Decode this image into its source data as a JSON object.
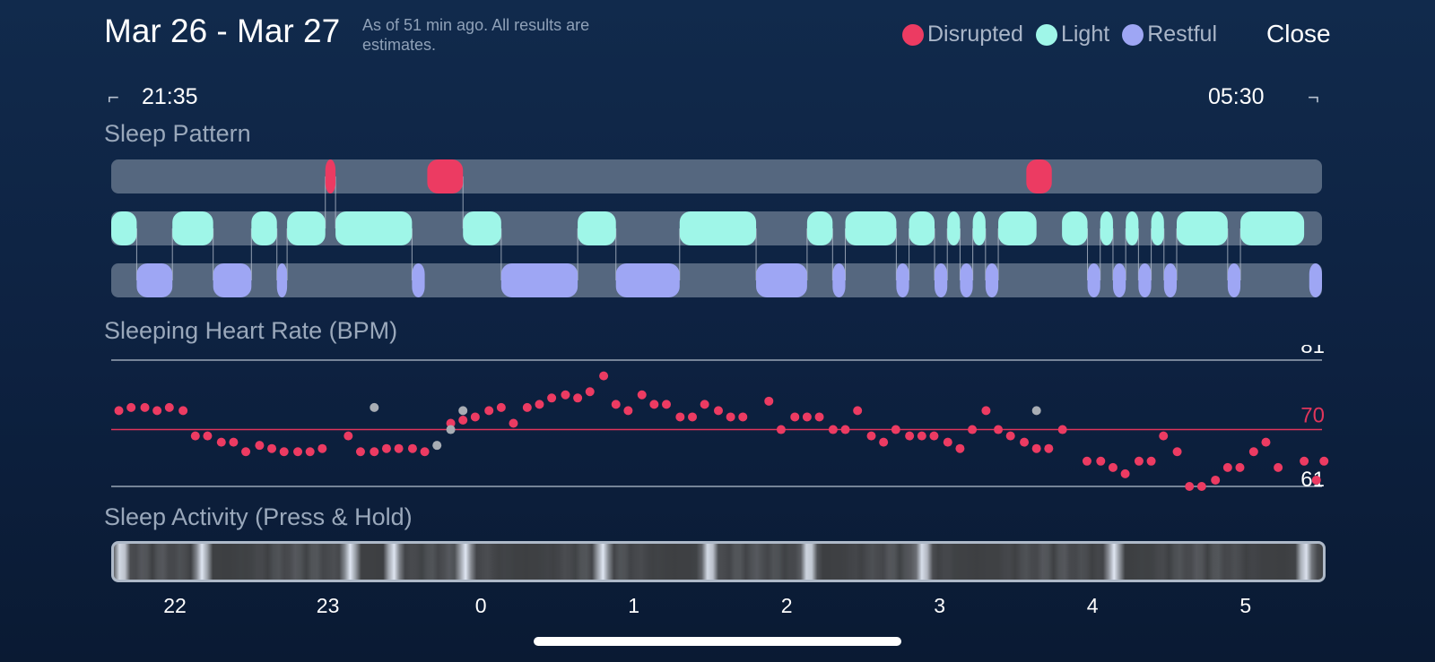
{
  "header": {
    "title": "Mar 26 - Mar 27",
    "subtitle": "As of 51 min ago. All results are estimates.",
    "close_label": "Close"
  },
  "legend": [
    {
      "label": "Disrupted",
      "color": "#ec3b62"
    },
    {
      "label": "Light",
      "color": "#9ff6e8"
    },
    {
      "label": "Restful",
      "color": "#9ea6f4"
    }
  ],
  "time_range": {
    "start": "21:35",
    "end": "05:30"
  },
  "sections": {
    "sleep_pattern": "Sleep Pattern",
    "heart_rate": "Sleeping Heart Rate (BPM)",
    "activity": "Sleep Activity (Press & Hold)"
  },
  "colors": {
    "disrupted": "#ec3b62",
    "light": "#9ff6e8",
    "restful": "#9ea6f4",
    "track": "#55677f",
    "gray_dot": "#a8adb4",
    "avg_line": "#e0355b"
  },
  "chart_data": [
    {
      "type": "timeline",
      "name": "Sleep Pattern",
      "time_start": "21:35",
      "time_end": "05:30",
      "rows": [
        "Disrupted",
        "Light",
        "Restful"
      ],
      "segments": {
        "Disrupted": [
          [
            "22:59",
            "23:03"
          ],
          [
            "23:39",
            "23:53"
          ],
          [
            "03:34",
            "03:44"
          ]
        ],
        "Light": [
          [
            "21:35",
            "21:45"
          ],
          [
            "21:59",
            "22:15"
          ],
          [
            "22:30",
            "22:40"
          ],
          [
            "22:44",
            "22:59"
          ],
          [
            "23:03",
            "23:33"
          ],
          [
            "23:53",
            "00:08"
          ],
          [
            "00:38",
            "00:53"
          ],
          [
            "01:18",
            "01:48"
          ],
          [
            "02:08",
            "02:18"
          ],
          [
            "02:23",
            "02:43"
          ],
          [
            "02:48",
            "02:58"
          ],
          [
            "03:03",
            "03:08"
          ],
          [
            "03:13",
            "03:18"
          ],
          [
            "03:23",
            "03:38"
          ],
          [
            "03:48",
            "03:58"
          ],
          [
            "04:03",
            "04:08"
          ],
          [
            "04:13",
            "04:18"
          ],
          [
            "04:23",
            "04:28"
          ],
          [
            "04:33",
            "04:53"
          ],
          [
            "04:58",
            "05:23"
          ]
        ],
        "Restful": [
          [
            "21:45",
            "21:59"
          ],
          [
            "22:15",
            "22:30"
          ],
          [
            "22:40",
            "22:44"
          ],
          [
            "23:33",
            "23:38"
          ],
          [
            "00:08",
            "00:38"
          ],
          [
            "00:53",
            "01:18"
          ],
          [
            "01:48",
            "02:08"
          ],
          [
            "02:18",
            "02:23"
          ],
          [
            "02:43",
            "02:48"
          ],
          [
            "02:58",
            "03:03"
          ],
          [
            "03:08",
            "03:13"
          ],
          [
            "03:18",
            "03:23"
          ],
          [
            "03:58",
            "04:03"
          ],
          [
            "04:08",
            "04:13"
          ],
          [
            "04:18",
            "04:23"
          ],
          [
            "04:28",
            "04:33"
          ],
          [
            "04:53",
            "04:58"
          ],
          [
            "05:25",
            "05:30"
          ]
        ]
      }
    },
    {
      "type": "scatter",
      "name": "Sleeping Heart Rate (BPM)",
      "ylim": [
        61,
        81
      ],
      "yticks": [
        "81",
        "70",
        "61"
      ],
      "average": 70,
      "x_unit": "hours after 21:35",
      "points": [
        [
          0.05,
          73
        ],
        [
          0.13,
          73.5
        ],
        [
          0.22,
          73.5
        ],
        [
          0.3,
          73
        ],
        [
          0.38,
          73.5
        ],
        [
          0.47,
          73
        ],
        [
          0.55,
          69
        ],
        [
          0.63,
          69
        ],
        [
          0.72,
          68
        ],
        [
          0.8,
          68
        ],
        [
          0.88,
          66.5
        ],
        [
          0.97,
          67.5
        ],
        [
          1.05,
          67
        ],
        [
          1.13,
          66.5
        ],
        [
          1.22,
          66.5
        ],
        [
          1.3,
          66.5
        ],
        [
          1.38,
          67
        ],
        [
          1.55,
          69
        ],
        [
          1.63,
          66.5
        ],
        [
          1.72,
          66.5
        ],
        [
          1.8,
          67
        ],
        [
          1.88,
          67
        ],
        [
          1.97,
          67
        ],
        [
          2.05,
          66.5
        ],
        [
          2.22,
          71
        ],
        [
          2.3,
          71.5
        ],
        [
          2.38,
          72
        ],
        [
          2.47,
          73
        ],
        [
          2.55,
          73.5
        ],
        [
          2.63,
          71
        ],
        [
          2.72,
          73.5
        ],
        [
          2.8,
          74
        ],
        [
          2.88,
          75
        ],
        [
          2.97,
          75.5
        ],
        [
          3.05,
          75
        ],
        [
          3.13,
          76
        ],
        [
          3.22,
          78.5
        ],
        [
          3.3,
          74
        ],
        [
          3.38,
          73
        ],
        [
          3.47,
          75.5
        ],
        [
          3.55,
          74
        ],
        [
          3.63,
          74
        ],
        [
          3.72,
          72
        ],
        [
          3.8,
          72
        ],
        [
          3.88,
          74
        ],
        [
          3.97,
          73
        ],
        [
          4.05,
          72
        ],
        [
          4.13,
          72
        ],
        [
          4.3,
          74.5
        ],
        [
          4.38,
          70
        ],
        [
          4.47,
          72
        ],
        [
          4.55,
          72
        ],
        [
          4.63,
          72
        ],
        [
          4.72,
          70
        ],
        [
          4.8,
          70
        ],
        [
          4.88,
          73
        ],
        [
          4.97,
          69
        ],
        [
          5.05,
          68
        ],
        [
          5.13,
          70
        ],
        [
          5.22,
          69
        ],
        [
          5.3,
          69
        ],
        [
          5.38,
          69
        ],
        [
          5.47,
          68
        ],
        [
          5.55,
          67
        ],
        [
          5.63,
          70
        ],
        [
          5.72,
          73
        ],
        [
          5.8,
          70
        ],
        [
          5.88,
          69
        ],
        [
          5.97,
          68
        ],
        [
          6.05,
          67
        ],
        [
          6.13,
          67
        ],
        [
          6.22,
          70
        ],
        [
          6.38,
          65
        ],
        [
          6.47,
          65
        ],
        [
          6.55,
          64
        ],
        [
          6.63,
          63
        ],
        [
          6.72,
          65
        ],
        [
          6.8,
          65
        ],
        [
          6.88,
          69
        ],
        [
          6.97,
          66.5
        ],
        [
          7.05,
          61
        ],
        [
          7.13,
          61
        ],
        [
          7.22,
          62
        ],
        [
          7.3,
          64
        ],
        [
          7.38,
          64
        ],
        [
          7.47,
          66.5
        ],
        [
          7.55,
          68
        ],
        [
          7.63,
          64
        ],
        [
          7.8,
          65
        ],
        [
          7.88,
          62
        ],
        [
          7.93,
          65
        ]
      ],
      "gray_points": [
        [
          1.72,
          73.5
        ],
        [
          2.13,
          67.5
        ],
        [
          2.22,
          70
        ],
        [
          2.3,
          73
        ],
        [
          6.05,
          73
        ]
      ]
    },
    {
      "type": "heatmap",
      "name": "Sleep Activity (Press & Hold)",
      "x_tick_labels": [
        "22",
        "23",
        "0",
        "1",
        "2",
        "3",
        "4",
        "5"
      ],
      "bright_bands_hours_after_start": [
        0.05,
        0.58,
        1.55,
        1.83,
        2.3,
        3.2,
        3.9,
        4.55,
        5.3,
        6.55,
        7.8
      ]
    }
  ]
}
